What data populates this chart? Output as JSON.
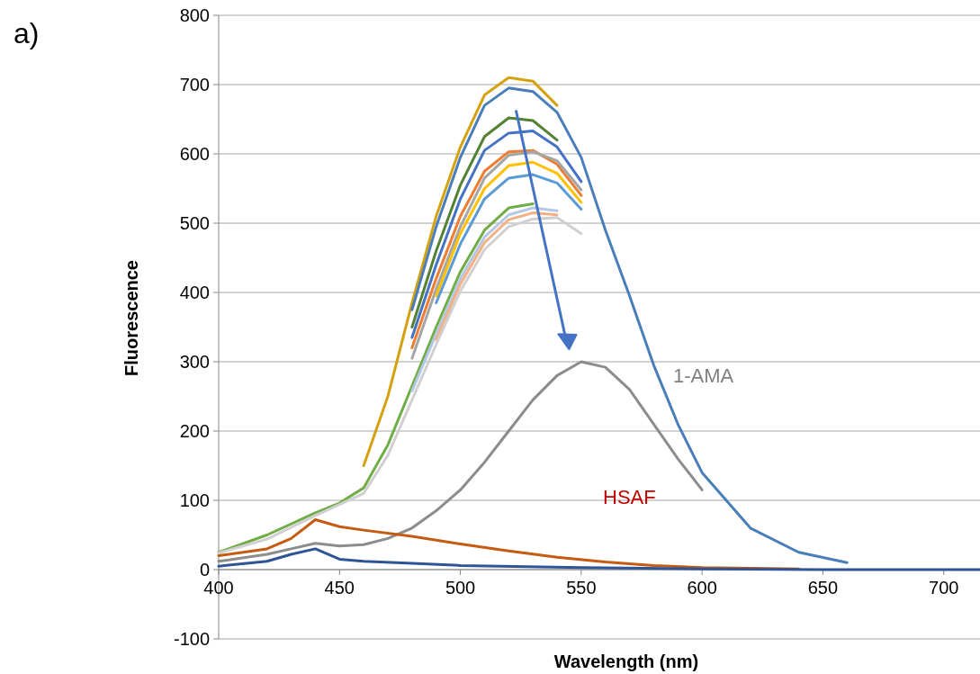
{
  "chart_data": {
    "type": "line",
    "xlabel": "Wavelength (nm)",
    "ylabel": "Fluorescence",
    "xlim": [
      400,
      715
    ],
    "xticks": [
      400,
      450,
      500,
      550,
      600,
      650,
      700
    ],
    "ylim": [
      -100,
      800
    ],
    "yticks": [
      -100,
      0,
      100,
      200,
      300,
      400,
      500,
      600,
      700,
      800
    ],
    "grid": "y",
    "marker": "none",
    "line_style": "solid",
    "x": [
      400,
      420,
      440,
      450,
      460,
      470,
      480,
      490,
      500,
      510,
      520,
      530,
      540,
      550,
      560,
      570,
      580,
      590,
      600,
      620,
      640,
      660
    ],
    "series": [
      {
        "color": "#d4a20f",
        "values": [
          null,
          null,
          null,
          null,
          150,
          250,
          385,
          510,
          610,
          685,
          710,
          705,
          670,
          null,
          null,
          null,
          null,
          null,
          null,
          null,
          null,
          null
        ]
      },
      {
        "color": "#4a7ebb",
        "values": [
          null,
          null,
          null,
          null,
          null,
          null,
          375,
          495,
          595,
          670,
          695,
          690,
          660,
          595,
          490,
          395,
          295,
          210,
          140,
          60,
          25,
          10
        ]
      },
      {
        "color": "#548235",
        "values": [
          null,
          null,
          null,
          null,
          null,
          null,
          350,
          460,
          555,
          625,
          652,
          648,
          620,
          null,
          null,
          null,
          null,
          null,
          null,
          null,
          null,
          null
        ]
      },
      {
        "color": "#4472c4",
        "values": [
          null,
          null,
          null,
          null,
          null,
          null,
          335,
          440,
          535,
          605,
          630,
          633,
          610,
          560,
          null,
          null,
          null,
          null,
          null,
          null,
          null,
          null
        ]
      },
      {
        "color": "#ed7d31",
        "values": [
          null,
          null,
          null,
          null,
          null,
          null,
          320,
          420,
          510,
          575,
          603,
          605,
          585,
          540,
          null,
          null,
          null,
          null,
          null,
          null,
          null,
          null
        ]
      },
      {
        "color": "#a5a5a5",
        "values": [
          null,
          null,
          null,
          null,
          null,
          null,
          305,
          405,
          495,
          565,
          598,
          603,
          590,
          548,
          null,
          null,
          null,
          null,
          null,
          null,
          null,
          null
        ]
      },
      {
        "color": "#ffc000",
        "values": [
          null,
          null,
          null,
          null,
          null,
          null,
          null,
          395,
          485,
          550,
          583,
          588,
          572,
          530,
          null,
          null,
          null,
          null,
          null,
          null,
          null,
          null
        ]
      },
      {
        "color": "#5b9bd5",
        "values": [
          null,
          null,
          null,
          null,
          null,
          null,
          null,
          385,
          470,
          535,
          565,
          570,
          558,
          520,
          null,
          null,
          null,
          null,
          null,
          null,
          null,
          null
        ]
      },
      {
        "color": "#70ad47",
        "values": [
          25,
          50,
          82,
          96,
          118,
          180,
          265,
          350,
          430,
          490,
          522,
          528,
          null,
          null,
          null,
          null,
          null,
          null,
          null,
          null,
          null,
          null
        ]
      },
      {
        "color": "#b4c7e7",
        "values": [
          null,
          null,
          null,
          null,
          null,
          null,
          258,
          340,
          420,
          480,
          512,
          522,
          518,
          null,
          null,
          null,
          null,
          null,
          null,
          null,
          null,
          null
        ]
      },
      {
        "color": "#f4b183",
        "values": [
          null,
          null,
          null,
          null,
          null,
          null,
          null,
          332,
          412,
          472,
          505,
          515,
          512,
          null,
          null,
          null,
          null,
          null,
          null,
          null,
          null,
          null
        ]
      },
      {
        "color": "#d0d0d0",
        "values": [
          24,
          44,
          78,
          94,
          110,
          165,
          245,
          325,
          402,
          462,
          495,
          506,
          508,
          485,
          null,
          null,
          null,
          null,
          null,
          null,
          null,
          null
        ]
      },
      {
        "color": "#8c8c8c",
        "x": [
          400,
          420,
          430,
          440,
          450,
          460,
          470,
          480,
          490,
          500,
          510,
          520,
          530,
          540,
          550,
          560,
          570,
          580,
          590,
          600
        ],
        "values": [
          12,
          22,
          30,
          38,
          34,
          36,
          45,
          60,
          85,
          115,
          155,
          200,
          245,
          280,
          300,
          292,
          260,
          210,
          160,
          115
        ]
      },
      {
        "color": "#c55a11",
        "x": [
          400,
          420,
          430,
          440,
          450,
          460,
          480,
          500,
          520,
          540,
          560,
          580,
          600,
          640
        ],
        "values": [
          20,
          30,
          45,
          72,
          62,
          57,
          48,
          37,
          27,
          18,
          11,
          6,
          3,
          1
        ]
      },
      {
        "color": "#2f5597",
        "x": [
          400,
          420,
          430,
          440,
          450,
          460,
          480,
          500,
          550,
          600,
          650,
          715
        ],
        "values": [
          5,
          12,
          22,
          30,
          15,
          12,
          9,
          6,
          3,
          1,
          0,
          0
        ]
      }
    ],
    "annotations": [
      "a)",
      "1-AMA",
      "HSAF"
    ]
  }
}
